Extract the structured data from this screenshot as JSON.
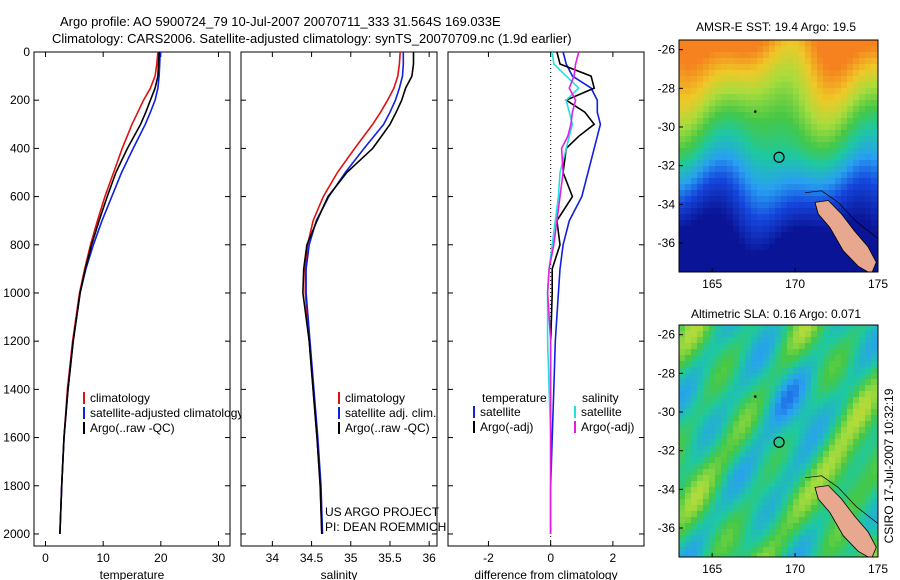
{
  "header": {
    "title_line1": "Argo profile: AO 5900724_79 10-Jul-2007 20070711_333 31.564S 169.033E",
    "title_line2": "Climatology: CARS2006. Satellite-adjusted climatology: synTS_20070709.nc (1.9d earlier)"
  },
  "colors": {
    "climatology": "#e01010",
    "satellite": "#1020e0",
    "argo": "#000000",
    "satellite_salinity": "#20e0e0",
    "argo_salinity_adj": "#e020e0"
  },
  "chart_data": [
    {
      "type": "line",
      "panel": "temperature",
      "xlabel": "temperature",
      "ylabel": "",
      "xlim": [
        -2,
        32
      ],
      "ylim": [
        2050,
        0
      ],
      "xticks": [
        "0",
        "10",
        "20",
        "30"
      ],
      "yticks": [
        "0",
        "200",
        "400",
        "600",
        "800",
        "1000",
        "1200",
        "1400",
        "1600",
        "1800",
        "2000"
      ],
      "depth": [
        0,
        50,
        100,
        150,
        200,
        250,
        300,
        400,
        500,
        600,
        700,
        800,
        900,
        1000,
        1200,
        1400,
        1600,
        1800,
        2000
      ],
      "legend": [
        "climatology",
        "satellite-adjusted climatology",
        "Argo(..raw -QC)"
      ],
      "series": [
        {
          "name": "climatology",
          "color_key": "climatology",
          "values": [
            19.5,
            19.3,
            19.0,
            18.2,
            17.0,
            16.0,
            15.0,
            13.3,
            11.8,
            10.3,
            9.0,
            7.8,
            6.8,
            5.9,
            4.7,
            3.8,
            3.2,
            2.8,
            2.5
          ]
        },
        {
          "name": "satellite-adjusted climatology",
          "color_key": "satellite",
          "values": [
            19.9,
            19.8,
            19.7,
            19.5,
            19.0,
            18.2,
            17.3,
            15.2,
            13.2,
            11.5,
            9.8,
            8.3,
            7.0,
            6.0,
            4.8,
            3.9,
            3.2,
            2.8,
            2.5
          ]
        },
        {
          "name": "Argo(..raw -QC)",
          "color_key": "argo",
          "values": [
            19.7,
            19.6,
            19.5,
            19.0,
            18.2,
            17.4,
            16.5,
            14.2,
            12.2,
            10.7,
            9.3,
            8.0,
            6.9,
            6.0,
            4.8,
            3.9,
            3.2,
            2.8,
            2.5
          ]
        }
      ]
    },
    {
      "type": "line",
      "panel": "salinity",
      "xlabel": "salinity",
      "ylabel": "",
      "xlim": [
        33.6,
        36.1
      ],
      "ylim": [
        2050,
        0
      ],
      "xticks": [
        "34",
        "34.5",
        "35",
        "35.5",
        "36"
      ],
      "depth": [
        0,
        50,
        100,
        150,
        200,
        250,
        300,
        400,
        500,
        600,
        700,
        800,
        900,
        1000,
        1200,
        1400,
        1600,
        1800,
        2000
      ],
      "legend": [
        "climatology",
        "satellite adj. clim.",
        "Argo(..raw -QC)"
      ],
      "series": [
        {
          "name": "climatology",
          "color_key": "climatology",
          "values": [
            35.63,
            35.62,
            35.6,
            35.55,
            35.47,
            35.38,
            35.28,
            35.05,
            34.83,
            34.65,
            34.52,
            34.45,
            34.42,
            34.42,
            34.47,
            34.52,
            34.57,
            34.61,
            34.63
          ]
        },
        {
          "name": "satellite adj. clim.",
          "color_key": "satellite",
          "values": [
            35.67,
            35.67,
            35.66,
            35.62,
            35.57,
            35.5,
            35.42,
            35.17,
            34.93,
            34.72,
            34.56,
            34.47,
            34.43,
            34.43,
            34.48,
            34.53,
            34.58,
            34.62,
            34.64
          ]
        },
        {
          "name": "Argo(..raw -QC)",
          "color_key": "argo",
          "values": [
            35.8,
            35.8,
            35.78,
            35.7,
            35.65,
            35.58,
            35.5,
            35.28,
            34.95,
            34.71,
            34.57,
            34.44,
            34.4,
            34.39,
            34.47,
            34.52,
            34.57,
            34.61,
            34.63
          ]
        }
      ]
    },
    {
      "type": "line",
      "panel": "difference",
      "xlabel": "difference from climatology",
      "ylabel": "",
      "xlim": [
        -3.3,
        3.0
      ],
      "ylim": [
        2050,
        0
      ],
      "xticks": [
        "-2",
        "0",
        "2"
      ],
      "depth": [
        0,
        50,
        100,
        150,
        200,
        250,
        300,
        350,
        400,
        500,
        600,
        700,
        800,
        900,
        1000,
        1200,
        1400,
        1600,
        1800,
        2000
      ],
      "legend_headers": [
        "temperature",
        "salinity"
      ],
      "legend": [
        "satellite",
        "Argo(-adj)",
        "satellite",
        "Argo(-adj)"
      ],
      "series": [
        {
          "name": "temperature satellite",
          "color_key": "satellite",
          "values": [
            0.4,
            0.5,
            0.7,
            1.3,
            1.5,
            1.5,
            1.6,
            1.5,
            1.4,
            1.2,
            1.0,
            0.6,
            0.4,
            0.3,
            0.25,
            0.15,
            0.1,
            0.05,
            0.0,
            0.0
          ]
        },
        {
          "name": "temperature Argo(-adj)",
          "color_key": "argo",
          "values": [
            0.2,
            0.3,
            1.3,
            1.4,
            0.5,
            1.1,
            1.4,
            0.9,
            0.5,
            0.4,
            0.7,
            0.2,
            0.3,
            0.05,
            0.05,
            0.0,
            0.0,
            0.0,
            0.0,
            0.0
          ]
        },
        {
          "name": "salinity satellite",
          "color_key": "satellite_salinity",
          "values": [
            0.05,
            0.1,
            0.5,
            0.9,
            0.5,
            0.6,
            0.7,
            0.6,
            0.5,
            0.3,
            0.25,
            0.15,
            0.05,
            -0.05,
            -0.1,
            -0.1,
            -0.05,
            0.0,
            0.0,
            0.0
          ]
        },
        {
          "name": "salinity Argo(-adj)",
          "color_key": "argo_salinity_adj",
          "values": [
            0.9,
            0.8,
            0.75,
            0.6,
            0.8,
            0.7,
            0.65,
            0.55,
            0.35,
            0.4,
            0.3,
            0.2,
            0.1,
            -0.05,
            -0.1,
            0.0,
            0.0,
            0.0,
            0.0,
            0.0
          ]
        }
      ]
    },
    {
      "type": "heatmap",
      "panel": "sst_map",
      "title": "AMSR-E SST: 19.4 Argo: 19.5",
      "xlim": [
        163,
        175
      ],
      "ylim": [
        -37.5,
        -25.5
      ],
      "xticks": [
        "165",
        "170",
        "175"
      ],
      "yticks": [
        "-26",
        "-28",
        "-30",
        "-32",
        "-34",
        "-36"
      ],
      "marker": {
        "lon": 169.033,
        "lat": -31.564
      }
    },
    {
      "type": "heatmap",
      "panel": "sla_map",
      "title": "Altimetric SLA: 0.16 Argo: 0.071",
      "xlim": [
        163,
        175
      ],
      "ylim": [
        -37.5,
        -25.5
      ],
      "xticks": [
        "165",
        "170",
        "175"
      ],
      "yticks": [
        "-26",
        "-28",
        "-30",
        "-32",
        "-34",
        "-36"
      ],
      "marker": {
        "lon": 169.033,
        "lat": -31.564
      }
    }
  ],
  "annotations": {
    "project_line1": "US ARGO PROJECT",
    "project_line2": "PI: DEAN ROEMMICH",
    "stamp": "CSIRO 17-Jul-2007 10:32:19"
  }
}
